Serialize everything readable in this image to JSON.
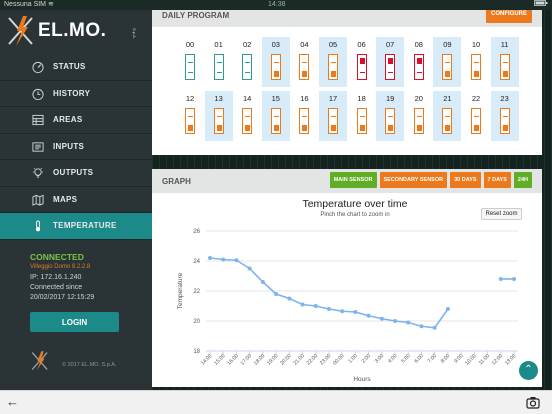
{
  "statusbar": {
    "carrier": "Nessuna SIM ≋",
    "time": "14:38",
    "battery": ""
  },
  "brand": {
    "name": "EL.MO.",
    "suffix": "S.p.A."
  },
  "nav": [
    {
      "label": "STATUS",
      "icon": "speedometer-icon",
      "active": false
    },
    {
      "label": "HISTORY",
      "icon": "history-icon",
      "active": false
    },
    {
      "label": "AREAS",
      "icon": "grid-icon",
      "active": false
    },
    {
      "label": "INPUTS",
      "icon": "input-icon",
      "active": false
    },
    {
      "label": "OUTPUTS",
      "icon": "bulb-icon",
      "active": false
    },
    {
      "label": "MAPS",
      "icon": "map-icon",
      "active": false
    },
    {
      "label": "TEMPERATURE",
      "icon": "thermometer-icon",
      "active": true
    }
  ],
  "connection": {
    "status": "CONNECTED",
    "device": "Villeggio Domo 8.2.2.8",
    "ip": "IP: 172.16.1.240",
    "since_label": "Connected since",
    "since_date": "20/02/2017 12:15:29"
  },
  "login_label": "LOGIN",
  "copyright": "© 2017 EL.MO. S.p.A.",
  "daily": {
    "title": "DAILY PROGRAM",
    "configure_label": "CONFIGURE",
    "hours": [
      {
        "label": "00",
        "state": "off"
      },
      {
        "label": "01",
        "state": "off"
      },
      {
        "label": "02",
        "state": "off"
      },
      {
        "label": "03",
        "state": "low"
      },
      {
        "label": "04",
        "state": "low"
      },
      {
        "label": "05",
        "state": "low"
      },
      {
        "label": "06",
        "state": "high"
      },
      {
        "label": "07",
        "state": "high"
      },
      {
        "label": "08",
        "state": "high"
      },
      {
        "label": "09",
        "state": "low"
      },
      {
        "label": "10",
        "state": "low"
      },
      {
        "label": "11",
        "state": "low"
      },
      {
        "label": "12",
        "state": "low"
      },
      {
        "label": "13",
        "state": "low"
      },
      {
        "label": "14",
        "state": "low"
      },
      {
        "label": "15",
        "state": "low"
      },
      {
        "label": "16",
        "state": "low"
      },
      {
        "label": "17",
        "state": "low"
      },
      {
        "label": "18",
        "state": "low"
      },
      {
        "label": "19",
        "state": "low"
      },
      {
        "label": "20",
        "state": "low"
      },
      {
        "label": "21",
        "state": "low"
      },
      {
        "label": "22",
        "state": "low"
      },
      {
        "label": "23",
        "state": "low"
      }
    ],
    "colors": {
      "off": "#2a9d8f",
      "low": "#ec7a1c",
      "high": "#d6112c"
    }
  },
  "graph": {
    "title": "GRAPH",
    "buttons": [
      {
        "label": "MAIN SENSOR",
        "color": "green"
      },
      {
        "label": "SECONDARY SENSOR",
        "color": "orange"
      },
      {
        "label": "30 DAYS",
        "color": "orange"
      },
      {
        "label": "7 DAYS",
        "color": "orange"
      },
      {
        "label": "24H",
        "color": "green"
      }
    ],
    "reset_zoom": "Reset zoom"
  },
  "chart_data": {
    "type": "line",
    "title": "Temperature over time",
    "subtitle": "Pinch the chart to zoom in",
    "xlabel": "Hours",
    "ylabel": "Temperature",
    "categories": [
      "14:00",
      "15:00",
      "16:00",
      "17:00",
      "18:00",
      "19:00",
      "20:00",
      "21:00",
      "22:00",
      "23:00",
      "00:00",
      "1:00",
      "2:00",
      "3:00",
      "4:00",
      "5:00",
      "6:00",
      "7:00",
      "8:00",
      "9:00",
      "10:00",
      "11:00",
      "12:00",
      "13:00"
    ],
    "ylim": [
      18,
      26
    ],
    "yticks": [
      18,
      20,
      22,
      24,
      26
    ],
    "grid": true,
    "color": "#7cb5ec",
    "series": [
      {
        "values": [
          24.2,
          24.1,
          24.05,
          23.5,
          22.6,
          21.8,
          21.5,
          21.1,
          21.0,
          20.8,
          20.65,
          20.6,
          20.35,
          20.15,
          20.0,
          19.9,
          19.65,
          19.55,
          20.8,
          null,
          null,
          null,
          22.8,
          22.8
        ]
      }
    ]
  }
}
